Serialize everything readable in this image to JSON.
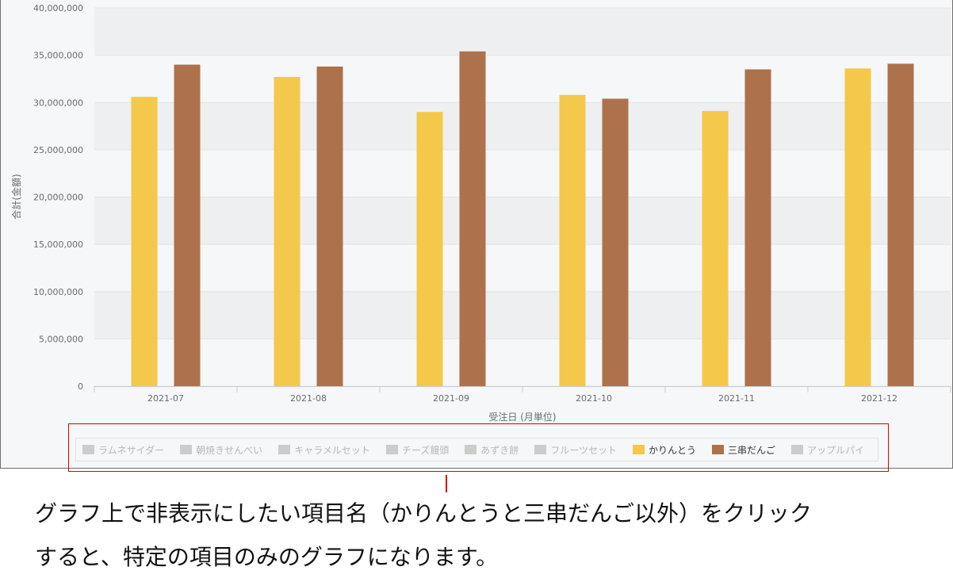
{
  "chart_data": {
    "type": "bar",
    "categories": [
      "2021-07",
      "2021-08",
      "2021-09",
      "2021-10",
      "2021-11",
      "2021-12"
    ],
    "series": [
      {
        "name": "かりんとう",
        "values": [
          30600000,
          32700000,
          29000000,
          30800000,
          29100000,
          33600000
        ],
        "color": "#f4c84b"
      },
      {
        "name": "三串だんご",
        "values": [
          34000000,
          33800000,
          35400000,
          30400000,
          33500000,
          34100000
        ],
        "color": "#ad724c"
      }
    ],
    "xlabel": "受注日 (月単位)",
    "ylabel": "合計(金額)",
    "ylim": [
      0,
      40000000
    ],
    "yticks": [
      0,
      5000000,
      10000000,
      15000000,
      20000000,
      25000000,
      30000000,
      35000000,
      40000000
    ],
    "ytick_labels": [
      "0",
      "5,000,000",
      "10,000,000",
      "15,000,000",
      "20,000,000",
      "25,000,000",
      "30,000,000",
      "35,000,000",
      "40,000,000"
    ],
    "legend_position": "bottom",
    "grid": true,
    "legend": [
      {
        "label": "ラムネサイダー",
        "active": false,
        "color": "#cccccc"
      },
      {
        "label": "朝焼きせんべい",
        "active": false,
        "color": "#cccccc"
      },
      {
        "label": "キャラメルセット",
        "active": false,
        "color": "#cccccc"
      },
      {
        "label": "チーズ饅頭",
        "active": false,
        "color": "#cccccc"
      },
      {
        "label": "あずき餅",
        "active": false,
        "color": "#cccccc"
      },
      {
        "label": "フルーツセット",
        "active": false,
        "color": "#cccccc"
      },
      {
        "label": "かりんとう",
        "active": true,
        "color": "#f4c84b"
      },
      {
        "label": "三串だんご",
        "active": true,
        "color": "#ad724c"
      },
      {
        "label": "アップルパイ",
        "active": false,
        "color": "#cccccc"
      }
    ]
  },
  "colors": {
    "inactive_text": "#b8b8b8",
    "active_text": "#333333",
    "highlight": "#e00000"
  },
  "caption": {
    "line1": "グラフ上で非表示にしたい項目名（かりんとうと三串だんご以外）をクリック",
    "line2": "すると、特定の項目のみのグラフになります。"
  }
}
